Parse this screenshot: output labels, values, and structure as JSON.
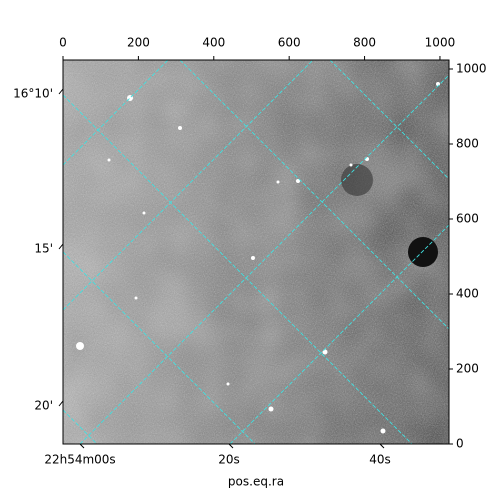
{
  "chart_data": {
    "type": "image",
    "xlabel": "pos.eq.ra",
    "xlim": [
      0,
      1024
    ],
    "xticks": [
      0,
      200,
      400,
      600,
      800,
      1000
    ],
    "ylim": [
      0,
      1024
    ],
    "yticks": [
      0,
      200,
      400,
      600,
      800,
      1000
    ],
    "wcs_y_labels": [
      "16°10'",
      "15'",
      "20'"
    ],
    "wcs_x_labels": [
      "22h54m00s",
      "20s",
      "40s"
    ],
    "grid_color": "#40e0e0"
  }
}
